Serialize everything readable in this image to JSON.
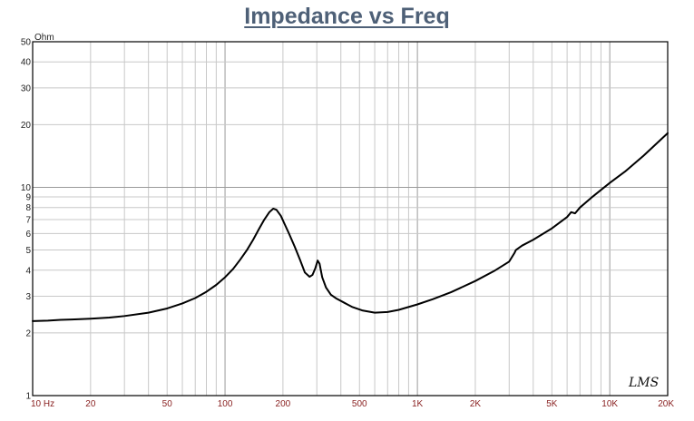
{
  "chart_data": {
    "type": "line",
    "title": "Impedance vs Freq",
    "ylabel": "Ohm",
    "xlabel": "",
    "x_scale": "log",
    "y_scale": "log",
    "xlim": [
      10,
      20000
    ],
    "ylim": [
      1,
      50
    ],
    "grid": true,
    "x_tick_values": [
      10,
      20,
      50,
      100,
      200,
      500,
      1000,
      2000,
      5000,
      10000,
      20000
    ],
    "x_tick_labels": [
      "10 Hz",
      "20",
      "50",
      "100",
      "200",
      "500",
      "1K",
      "2K",
      "5K",
      "10K",
      "20K"
    ],
    "y_tick_values": [
      1,
      2,
      3,
      4,
      5,
      6,
      7,
      8,
      9,
      10,
      20,
      30,
      40,
      50
    ],
    "y_tick_labels": [
      "1",
      "2",
      "3",
      "4",
      "5",
      "6",
      "7",
      "8",
      "9",
      "10",
      "20",
      "30",
      "40",
      "50"
    ],
    "series": [
      {
        "color": "#000000",
        "points": [
          [
            10,
            2.28
          ],
          [
            12,
            2.29
          ],
          [
            14,
            2.31
          ],
          [
            16,
            2.32
          ],
          [
            20,
            2.34
          ],
          [
            25,
            2.37
          ],
          [
            30,
            2.41
          ],
          [
            40,
            2.5
          ],
          [
            50,
            2.62
          ],
          [
            60,
            2.77
          ],
          [
            70,
            2.94
          ],
          [
            80,
            3.15
          ],
          [
            90,
            3.4
          ],
          [
            100,
            3.7
          ],
          [
            110,
            4.05
          ],
          [
            120,
            4.5
          ],
          [
            130,
            5.0
          ],
          [
            140,
            5.6
          ],
          [
            150,
            6.3
          ],
          [
            160,
            7.0
          ],
          [
            170,
            7.6
          ],
          [
            178,
            7.9
          ],
          [
            185,
            7.8
          ],
          [
            195,
            7.3
          ],
          [
            205,
            6.6
          ],
          [
            215,
            6.0
          ],
          [
            230,
            5.2
          ],
          [
            245,
            4.5
          ],
          [
            260,
            3.9
          ],
          [
            275,
            3.72
          ],
          [
            285,
            3.8
          ],
          [
            295,
            4.1
          ],
          [
            303,
            4.45
          ],
          [
            310,
            4.3
          ],
          [
            320,
            3.7
          ],
          [
            335,
            3.3
          ],
          [
            355,
            3.05
          ],
          [
            380,
            2.92
          ],
          [
            420,
            2.78
          ],
          [
            460,
            2.66
          ],
          [
            520,
            2.56
          ],
          [
            600,
            2.5
          ],
          [
            700,
            2.52
          ],
          [
            800,
            2.58
          ],
          [
            1000,
            2.74
          ],
          [
            1200,
            2.9
          ],
          [
            1500,
            3.14
          ],
          [
            2000,
            3.55
          ],
          [
            2500,
            3.96
          ],
          [
            3000,
            4.4
          ],
          [
            3200,
            4.85
          ],
          [
            3250,
            5.0
          ],
          [
            3500,
            5.25
          ],
          [
            4000,
            5.6
          ],
          [
            5000,
            6.35
          ],
          [
            6000,
            7.2
          ],
          [
            6300,
            7.6
          ],
          [
            6600,
            7.5
          ],
          [
            7000,
            8.0
          ],
          [
            8000,
            8.9
          ],
          [
            10000,
            10.5
          ],
          [
            12000,
            11.9
          ],
          [
            15000,
            14.2
          ],
          [
            20000,
            18.2
          ]
        ]
      }
    ]
  },
  "watermark": "LMS"
}
